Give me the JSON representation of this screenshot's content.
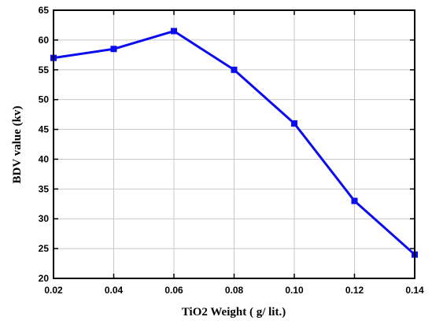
{
  "chart_data": {
    "type": "line",
    "x": [
      0.02,
      0.04,
      0.06,
      0.08,
      0.1,
      0.12,
      0.14
    ],
    "series": [
      {
        "values": [
          57,
          58.5,
          61.5,
          55,
          46,
          33,
          24
        ]
      }
    ],
    "xlabel": "TiO2 Weight ( g/ lit.)",
    "ylabel": "BDV value (kv)",
    "xlim": [
      0.02,
      0.14
    ],
    "ylim": [
      20,
      65
    ],
    "xticks": [
      "0.02",
      "0.04",
      "0.06",
      "0.08",
      "0.10",
      "0.12",
      "0.14"
    ],
    "yticks": [
      "20",
      "25",
      "30",
      "35",
      "40",
      "45",
      "50",
      "55",
      "60",
      "65"
    ],
    "grid": true,
    "colors": {
      "series": "#0b0bf0",
      "grid": "#c8c8c8",
      "frame": "#000000"
    }
  }
}
